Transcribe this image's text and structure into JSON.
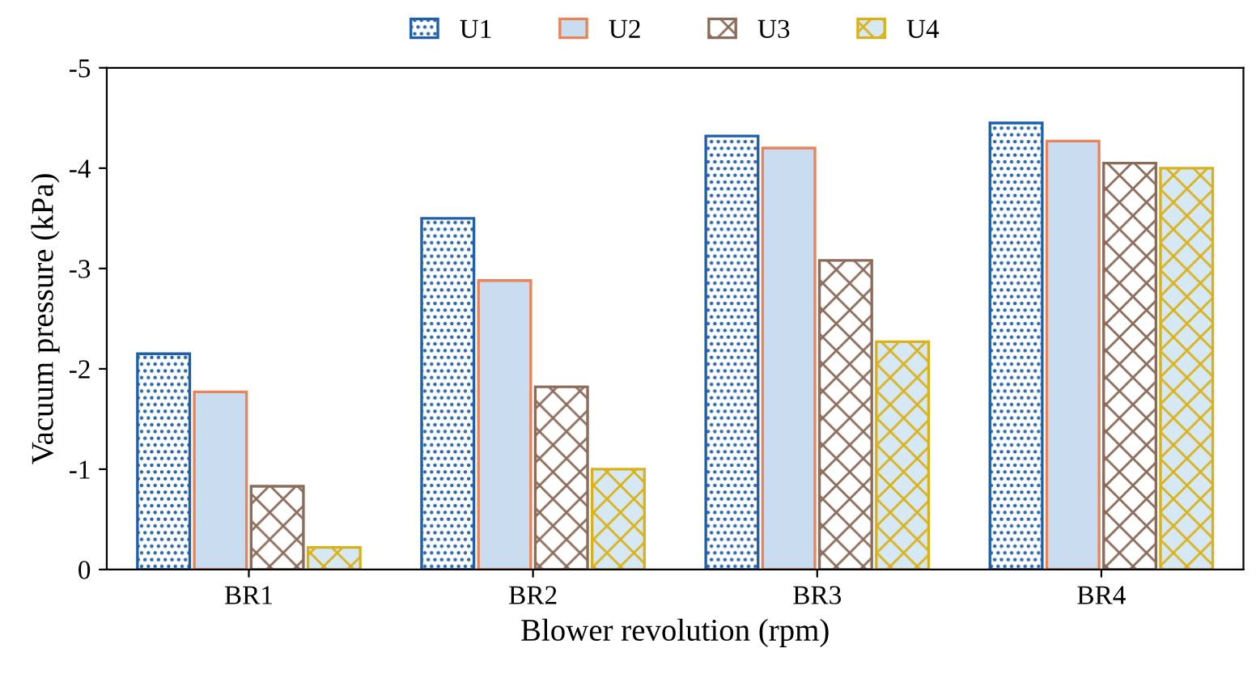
{
  "chart_data": {
    "type": "bar",
    "xlabel": "Blower revolution (rpm)",
    "ylabel": "Vacuum pressure (kPa)",
    "categories": [
      "BR1",
      "BR2",
      "BR3",
      "BR4"
    ],
    "series": [
      {
        "name": "U1",
        "color": "#1f5fa8",
        "values": [
          -2.15,
          -3.5,
          -4.32,
          -4.45
        ]
      },
      {
        "name": "U2",
        "color": "#e8845a",
        "values": [
          -1.77,
          -2.88,
          -4.2,
          -4.27
        ]
      },
      {
        "name": "U3",
        "color": "#8b6b5a",
        "values": [
          -0.83,
          -1.82,
          -3.08,
          -4.05
        ]
      },
      {
        "name": "U4",
        "color": "#d9b21a",
        "values": [
          -0.22,
          -1.0,
          -2.27,
          -4.0
        ]
      }
    ],
    "ylim": [
      0,
      -5
    ],
    "yticks": [
      {
        "value": 0,
        "label": "0"
      },
      {
        "value": -1,
        "label": "-1"
      },
      {
        "value": -2,
        "label": "-2"
      },
      {
        "value": -3,
        "label": "-3"
      },
      {
        "value": -4,
        "label": "-4"
      },
      {
        "value": -5,
        "label": "-5"
      }
    ],
    "grid": false,
    "legend": "top"
  }
}
